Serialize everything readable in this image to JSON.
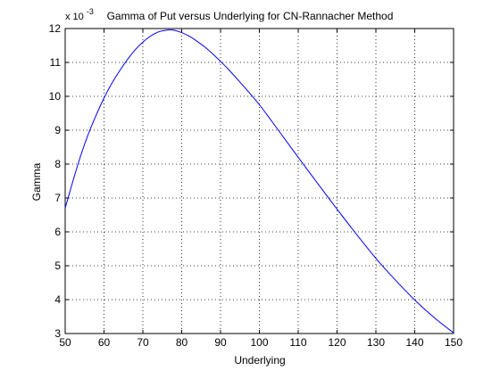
{
  "chart_data": {
    "type": "line",
    "title": "Gamma of Put versus Underlying for CN-Rannacher Method",
    "xlabel": "Underlying",
    "ylabel": "Gamma",
    "y_multiplier_base": "x 10",
    "y_multiplier_exp": "-3",
    "xlim": [
      50,
      150
    ],
    "ylim": [
      3,
      12
    ],
    "xticks": [
      50,
      60,
      70,
      80,
      90,
      100,
      110,
      120,
      130,
      140,
      150
    ],
    "yticks": [
      3,
      4,
      5,
      6,
      7,
      8,
      9,
      10,
      11,
      12
    ],
    "grid": true,
    "grid_style": "dotted",
    "line_color": "#0000ff",
    "series": [
      {
        "x": [
          50,
          52,
          54,
          56,
          58,
          60,
          62,
          64,
          66,
          68,
          70,
          72,
          74,
          76,
          77,
          78,
          80,
          82,
          84,
          86,
          88,
          90,
          92,
          95,
          100,
          105,
          110,
          115,
          120,
          125,
          130,
          135,
          140,
          145,
          150
        ],
        "y": [
          6.7,
          7.5,
          8.25,
          8.9,
          9.45,
          9.95,
          10.38,
          10.75,
          11.08,
          11.37,
          11.6,
          11.78,
          11.9,
          11.95,
          11.96,
          11.95,
          11.88,
          11.77,
          11.62,
          11.45,
          11.25,
          11.03,
          10.8,
          10.42,
          9.75,
          8.98,
          8.2,
          7.43,
          6.67,
          5.93,
          5.22,
          4.58,
          3.99,
          3.47,
          3.02
        ]
      }
    ]
  }
}
